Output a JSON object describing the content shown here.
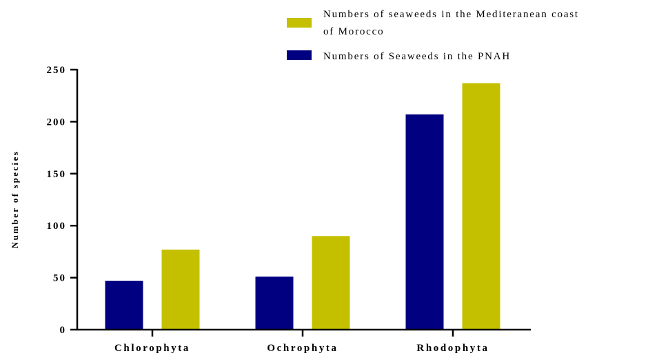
{
  "chart_data": {
    "type": "bar",
    "categories": [
      "Chlorophyta",
      "Ochrophyta",
      "Rhodophyta"
    ],
    "series": [
      {
        "name": "Numbers of Seaweeds in the PNAH",
        "values": [
          47,
          51,
          207
        ],
        "color": "#000080"
      },
      {
        "name": "Numbers of seaweeds in the Mediteranean coast of Morocco",
        "name_lines": [
          "Numbers of  seaweeds in the Mediteranean coast",
          "of Morocco"
        ],
        "values": [
          77,
          90,
          237
        ],
        "color": "#c4c000"
      }
    ],
    "xlabel": "",
    "ylabel": "Number of species",
    "ylim": [
      0,
      250
    ],
    "yticks": [
      "0",
      "50",
      "100",
      "150",
      "200",
      "250"
    ],
    "grid": false,
    "legend": {
      "placement": "top-right",
      "order": [
        1,
        0
      ]
    }
  }
}
